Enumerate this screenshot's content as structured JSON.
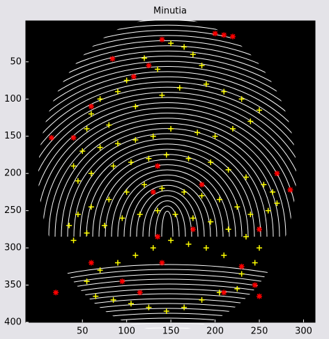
{
  "chart_data": {
    "type": "scatter",
    "title": "Minutia",
    "xlim": [
      -14,
      313
    ],
    "ylim": [
      -5,
      400
    ],
    "y_reversed": true,
    "xticks": [
      50,
      100,
      150,
      200,
      250,
      300
    ],
    "yticks": [
      50,
      100,
      150,
      200,
      250,
      300,
      350,
      400
    ],
    "background": "#000000",
    "series": [
      {
        "color": "#ffff00",
        "marker": "plus",
        "x": [
          150,
          165,
          175,
          185,
          120,
          135,
          100,
          90,
          70,
          60,
          55,
          80,
          110,
          140,
          160,
          190,
          210,
          230,
          250,
          240,
          220,
          200,
          180,
          150,
          130,
          110,
          90,
          70,
          50,
          40,
          45,
          60,
          85,
          105,
          125,
          145,
          170,
          195,
          215,
          235,
          255,
          265,
          270,
          260,
          240,
          225,
          205,
          185,
          165,
          140,
          120,
          100,
          80,
          60,
          45,
          35,
          40,
          55,
          75,
          95,
          115,
          135,
          155,
          175,
          195,
          215,
          235,
          250,
          245,
          230,
          210,
          190,
          170,
          150,
          130,
          110,
          90,
          70,
          55,
          65,
          85,
          105,
          125,
          145,
          165,
          185,
          205,
          225
        ],
        "y": [
          25,
          30,
          40,
          55,
          45,
          60,
          75,
          90,
          100,
          120,
          140,
          135,
          110,
          95,
          85,
          80,
          90,
          100,
          115,
          130,
          140,
          150,
          145,
          140,
          150,
          155,
          160,
          165,
          170,
          190,
          210,
          200,
          190,
          185,
          180,
          175,
          180,
          185,
          195,
          205,
          215,
          225,
          240,
          250,
          255,
          245,
          235,
          230,
          225,
          220,
          215,
          225,
          235,
          245,
          255,
          270,
          290,
          280,
          270,
          260,
          255,
          250,
          255,
          260,
          265,
          275,
          285,
          300,
          320,
          335,
          310,
          300,
          295,
          290,
          300,
          310,
          320,
          330,
          345,
          365,
          370,
          375,
          380,
          385,
          380,
          370,
          360,
          355
        ]
      },
      {
        "color": "#ff0000",
        "marker": "star",
        "x": [
          84,
          108,
          200,
          210,
          220,
          60,
          15,
          40,
          135,
          130,
          185,
          270,
          285,
          175,
          135,
          140,
          250,
          230,
          245,
          20,
          95,
          115,
          250,
          210,
          60,
          125,
          140
        ],
        "y": [
          46,
          70,
          12,
          14,
          16,
          110,
          152,
          152,
          190,
          225,
          215,
          200,
          222,
          275,
          285,
          320,
          275,
          325,
          350,
          360,
          345,
          360,
          365,
          360,
          320,
          55,
          20
        ]
      }
    ]
  }
}
